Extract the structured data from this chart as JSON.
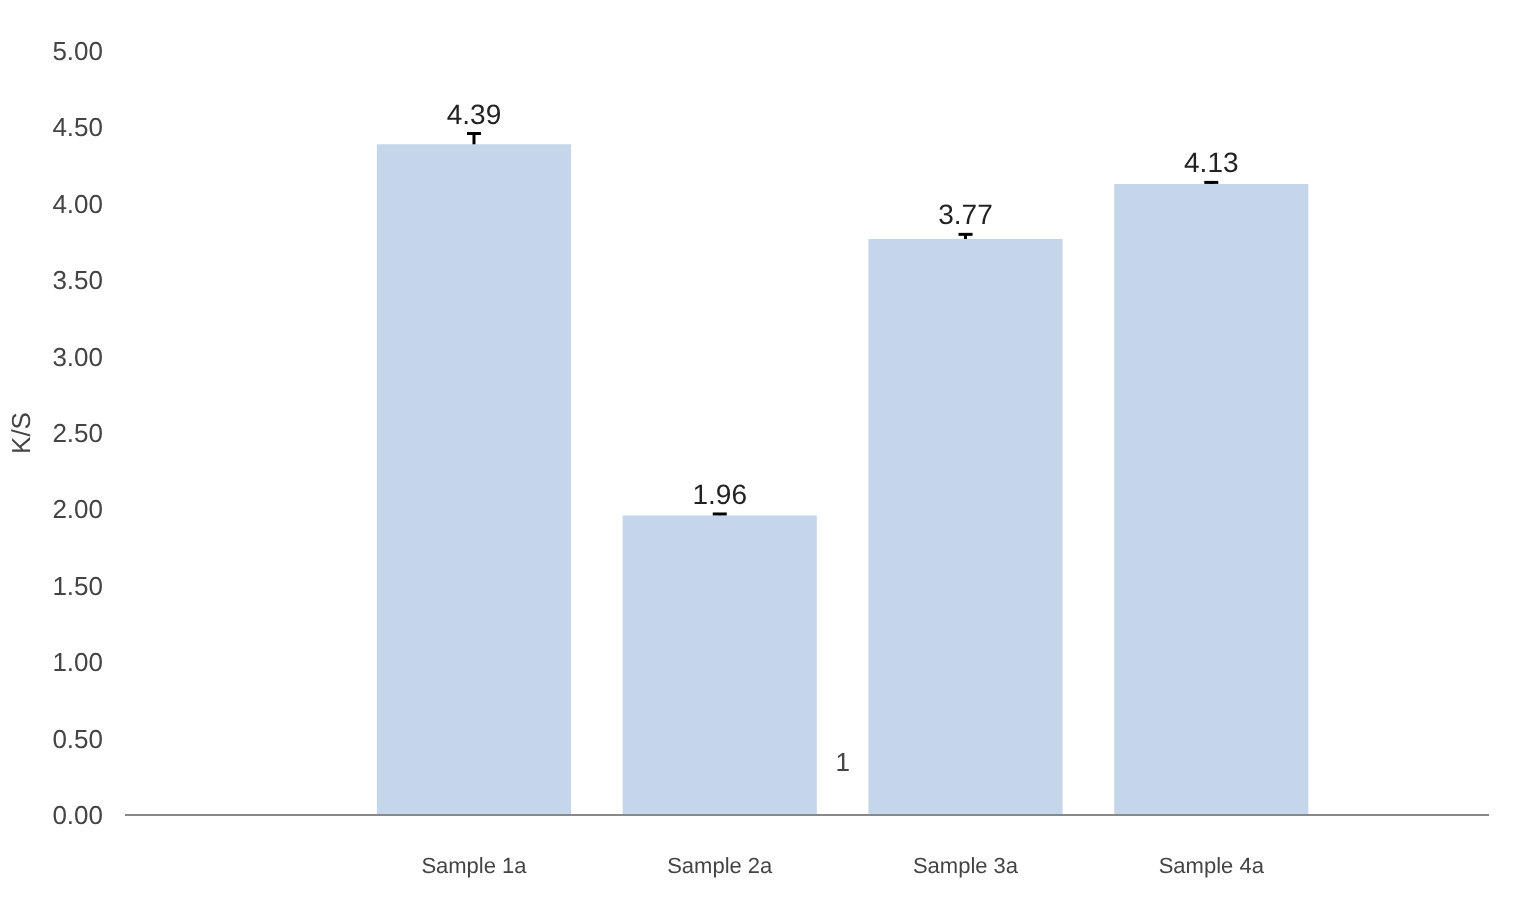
{
  "chart_data": {
    "type": "bar",
    "ylabel": "K/S",
    "categories": [
      "Sample 1a",
      "Sample 2a",
      "Sample 3a",
      "Sample 4a"
    ],
    "values": [
      4.39,
      1.96,
      3.77,
      4.13
    ],
    "errors": [
      0.07,
      0.01,
      0.03,
      0.01
    ],
    "color": "#c5d6ea",
    "data_labels": true,
    "ylim": [
      0,
      5
    ],
    "yticks": [
      {
        "value": 0,
        "label": "0.00"
      },
      {
        "value": 0.5,
        "label": "0.50"
      },
      {
        "value": 1,
        "label": "1.00"
      },
      {
        "value": 1.5,
        "label": "1.50"
      },
      {
        "value": 2,
        "label": "2.00"
      },
      {
        "value": 2.5,
        "label": "2.50"
      },
      {
        "value": 3,
        "label": "3.00"
      },
      {
        "value": 3.5,
        "label": "3.50"
      },
      {
        "value": 4,
        "label": "4.00"
      },
      {
        "value": 4.5,
        "label": "4.50"
      },
      {
        "value": 5,
        "label": "5.00"
      }
    ],
    "annotations": [
      "1"
    ],
    "grid": false
  }
}
